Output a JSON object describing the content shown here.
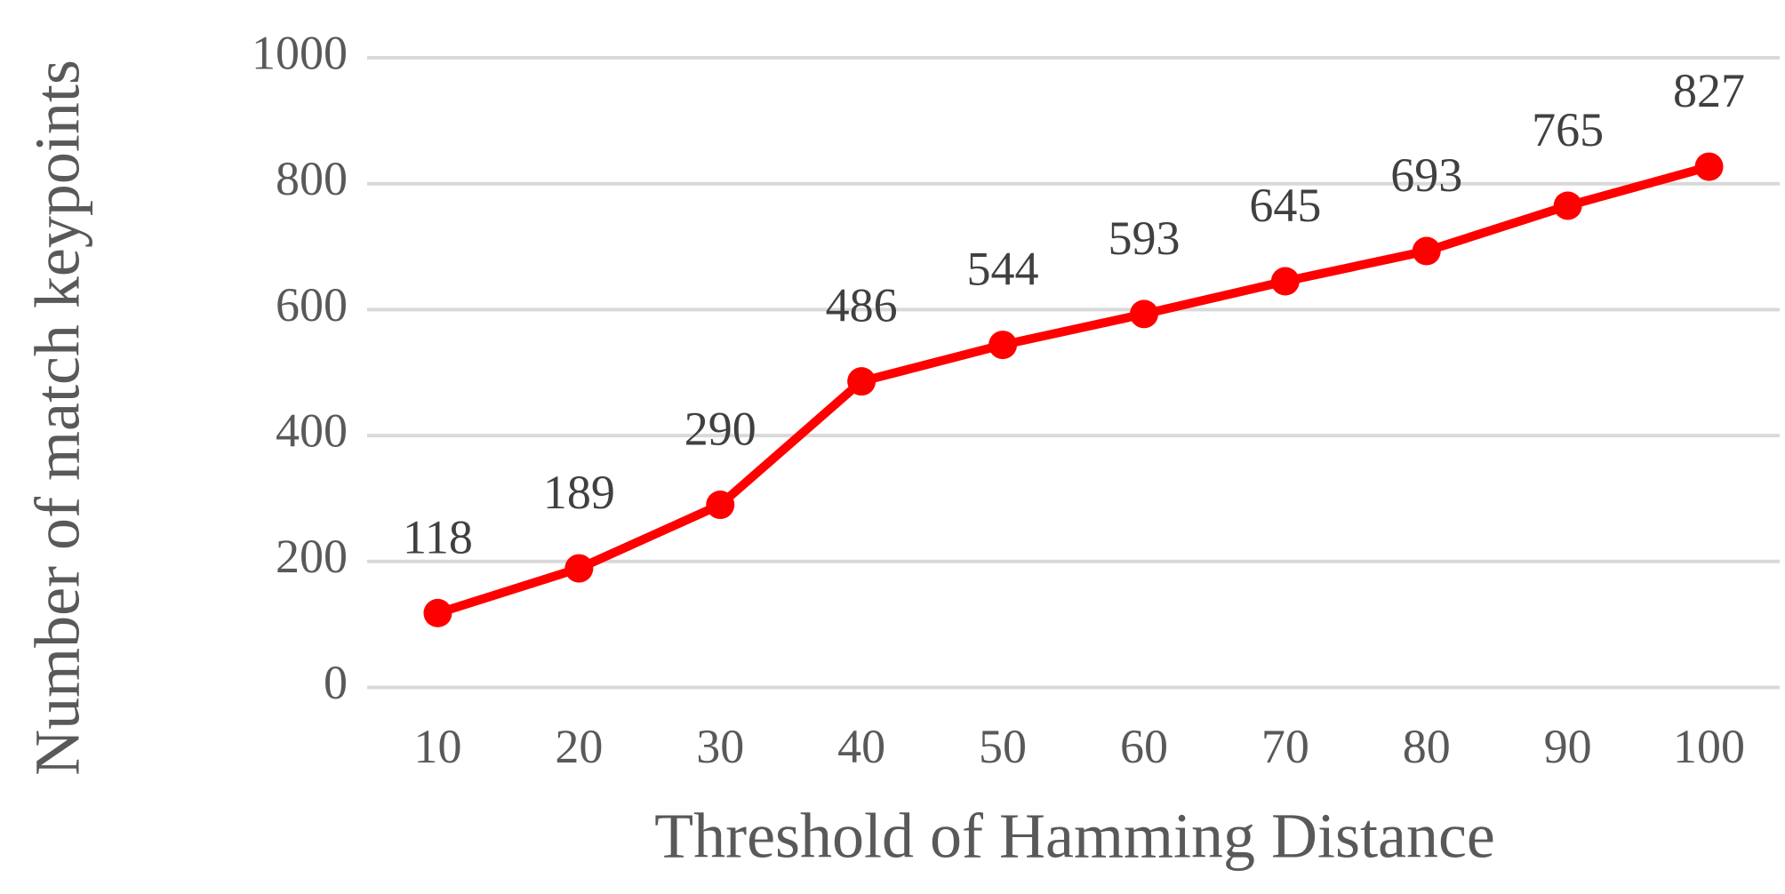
{
  "chart_data": {
    "type": "line",
    "x_label": "Threshold of Hamming Distance",
    "y_label": "Number of match keypoints",
    "categories": [
      "10",
      "20",
      "30",
      "40",
      "50",
      "60",
      "70",
      "80",
      "90",
      "100"
    ],
    "series": [
      {
        "color": "#ff0000",
        "values": [
          118,
          189,
          290,
          486,
          544,
          593,
          645,
          693,
          765,
          827
        ]
      }
    ],
    "ylim": [
      0,
      1000
    ],
    "yticks": [
      0,
      200,
      400,
      600,
      800,
      1000
    ],
    "grid": true
  }
}
